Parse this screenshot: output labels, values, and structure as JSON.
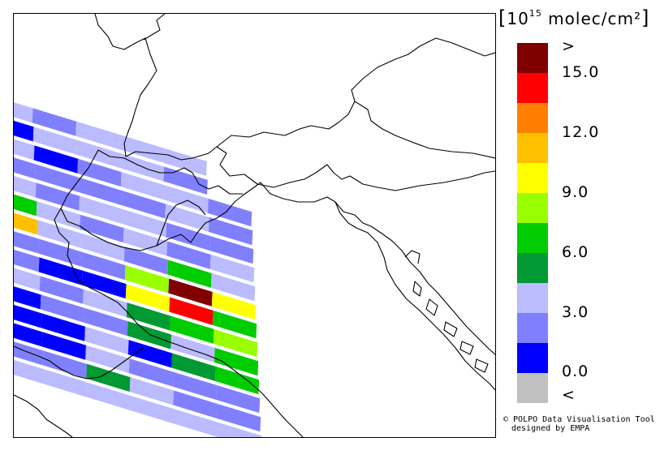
{
  "legend": {
    "title_prefix": "[",
    "title_base": "10",
    "title_exponent": "15",
    "title_unit": " molec/cm²",
    "title_suffix": "]",
    "swatch_colors": [
      "#800000",
      "#ff0000",
      "#ff8000",
      "#ffc000",
      "#ffff00",
      "#99ff00",
      "#00cc00",
      "#009933",
      "#bbbbff",
      "#8080ff",
      "#0000ff",
      "#c0c0c0"
    ],
    "labels": [
      ">",
      "15.0",
      "12.0",
      "9.0",
      "6.0",
      "3.0",
      "0.0",
      "<"
    ]
  },
  "credit": {
    "line1": "© POLPO Data Visualisation Tool",
    "line2": "designed by EMPA"
  },
  "map": {
    "pixel_colors": [
      "#8080ff",
      "#bbbbff",
      "#0000ff",
      "#009933",
      "#00cc00",
      "#99ff00",
      "#ffff00",
      "#ff0000",
      "#800000",
      "#ffc000"
    ]
  }
}
